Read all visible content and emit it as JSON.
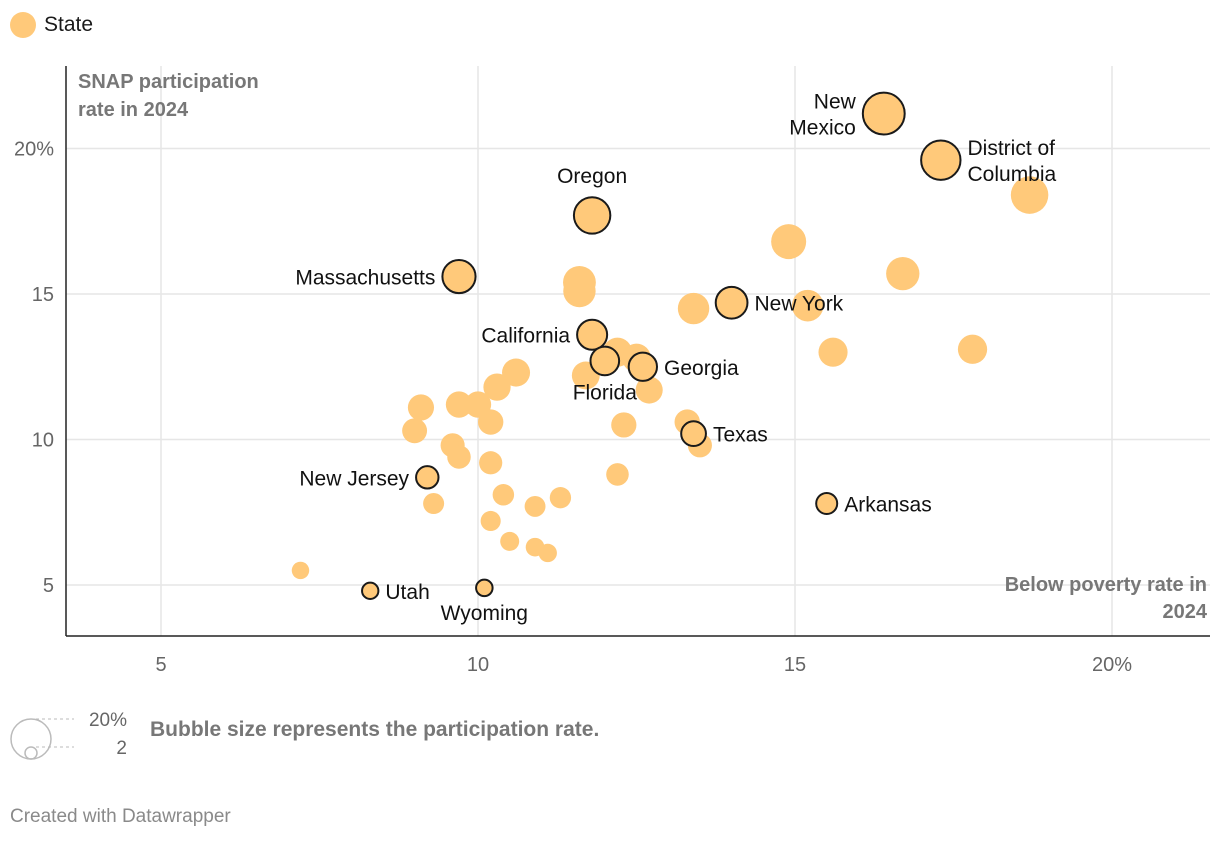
{
  "legend": {
    "label": "State",
    "color": "#ffc97a"
  },
  "chart_data": {
    "type": "scatter",
    "title": "",
    "xlabel": "Below poverty rate in 2024",
    "ylabel": "SNAP participation rate in 2024",
    "xlim": [
      3.5,
      21.5
    ],
    "ylim": [
      3.2,
      22.8
    ],
    "x_ticks": [
      {
        "value": 5,
        "label": "5"
      },
      {
        "value": 10,
        "label": "10"
      },
      {
        "value": 15,
        "label": "15"
      },
      {
        "value": 20,
        "label": "20%"
      }
    ],
    "y_ticks": [
      {
        "value": 5,
        "label": "5"
      },
      {
        "value": 10,
        "label": "10"
      },
      {
        "value": 15,
        "label": "15"
      },
      {
        "value": 20,
        "label": "20%"
      }
    ],
    "grid": true,
    "point_color": "#ffc97a",
    "highlight_stroke": "#1a1a1a",
    "labeled_points": [
      {
        "name": "New Mexico",
        "lines": [
          "New",
          "Mexico"
        ],
        "x": 16.4,
        "y": 21.2,
        "side": "left"
      },
      {
        "name": "District of Columbia",
        "lines": [
          "District of",
          "Columbia"
        ],
        "x": 17.3,
        "y": 19.6,
        "side": "right"
      },
      {
        "name": "Oregon",
        "lines": [
          "Oregon"
        ],
        "x": 11.8,
        "y": 17.7,
        "side": "top"
      },
      {
        "name": "Massachusetts",
        "lines": [
          "Massachusetts"
        ],
        "x": 9.7,
        "y": 15.6,
        "side": "left"
      },
      {
        "name": "New York",
        "lines": [
          "New York"
        ],
        "x": 14.0,
        "y": 14.7,
        "side": "right"
      },
      {
        "name": "California",
        "lines": [
          "California"
        ],
        "x": 11.8,
        "y": 13.6,
        "side": "left"
      },
      {
        "name": "Florida",
        "lines": [
          "Florida"
        ],
        "x": 12.0,
        "y": 12.7,
        "side": "bottom"
      },
      {
        "name": "Georgia",
        "lines": [
          "Georgia"
        ],
        "x": 12.6,
        "y": 12.5,
        "side": "right"
      },
      {
        "name": "Texas",
        "lines": [
          "Texas"
        ],
        "x": 13.4,
        "y": 10.2,
        "side": "right"
      },
      {
        "name": "New Jersey",
        "lines": [
          "New Jersey"
        ],
        "x": 9.2,
        "y": 8.7,
        "side": "left"
      },
      {
        "name": "Arkansas",
        "lines": [
          "Arkansas"
        ],
        "x": 15.5,
        "y": 7.8,
        "side": "right"
      },
      {
        "name": "Utah",
        "lines": [
          "Utah"
        ],
        "x": 8.3,
        "y": 4.8,
        "side": "right"
      },
      {
        "name": "Wyoming",
        "lines": [
          "Wyoming"
        ],
        "x": 10.1,
        "y": 4.9,
        "side": "bottom"
      }
    ],
    "other_points": [
      {
        "x": 18.7,
        "y": 18.4
      },
      {
        "x": 14.9,
        "y": 16.8
      },
      {
        "x": 16.7,
        "y": 15.7
      },
      {
        "x": 11.6,
        "y": 15.4
      },
      {
        "x": 11.6,
        "y": 15.1
      },
      {
        "x": 13.4,
        "y": 14.5
      },
      {
        "x": 15.2,
        "y": 14.6
      },
      {
        "x": 15.6,
        "y": 13.0
      },
      {
        "x": 17.8,
        "y": 13.1
      },
      {
        "x": 12.2,
        "y": 13.0
      },
      {
        "x": 12.5,
        "y": 12.8
      },
      {
        "x": 11.7,
        "y": 12.2
      },
      {
        "x": 12.7,
        "y": 11.7
      },
      {
        "x": 10.6,
        "y": 12.3
      },
      {
        "x": 10.3,
        "y": 11.8
      },
      {
        "x": 9.1,
        "y": 11.1
      },
      {
        "x": 9.7,
        "y": 11.2
      },
      {
        "x": 10.0,
        "y": 11.2
      },
      {
        "x": 10.2,
        "y": 10.6
      },
      {
        "x": 9.0,
        "y": 10.3
      },
      {
        "x": 9.6,
        "y": 9.8
      },
      {
        "x": 9.7,
        "y": 9.4
      },
      {
        "x": 10.2,
        "y": 9.2
      },
      {
        "x": 12.3,
        "y": 10.5
      },
      {
        "x": 13.3,
        "y": 10.6
      },
      {
        "x": 13.5,
        "y": 9.8
      },
      {
        "x": 12.2,
        "y": 8.8
      },
      {
        "x": 9.3,
        "y": 7.8
      },
      {
        "x": 10.4,
        "y": 8.1
      },
      {
        "x": 11.3,
        "y": 8.0
      },
      {
        "x": 10.9,
        "y": 7.7
      },
      {
        "x": 10.2,
        "y": 7.2
      },
      {
        "x": 10.5,
        "y": 6.5
      },
      {
        "x": 10.9,
        "y": 6.3
      },
      {
        "x": 11.1,
        "y": 6.1
      },
      {
        "x": 7.2,
        "y": 5.5
      }
    ]
  },
  "size_legend": {
    "max_label": "20%",
    "min_label": "2",
    "note": "Bubble size represents the participation rate."
  },
  "footer": "Created with Datawrapper"
}
